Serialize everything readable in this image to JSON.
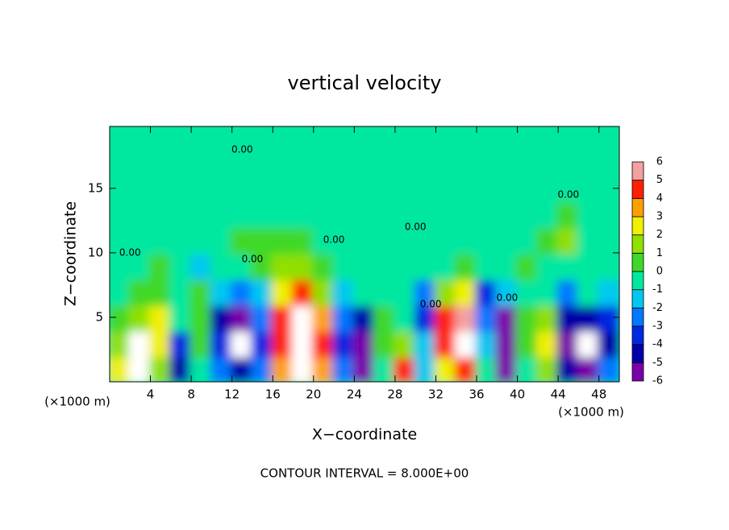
{
  "chart_data": {
    "type": "contour",
    "title": "vertical velocity",
    "xlabel": "X−coordinate",
    "ylabel": "Z−coordinate",
    "x_unit": "(×1000 m)",
    "y_unit": "(×1000 m)",
    "footer": "CONTOUR INTERVAL = 8.000E+00",
    "xlim": [
      0,
      50
    ],
    "ylim": [
      0,
      19.8
    ],
    "xticks": [
      4,
      8,
      12,
      16,
      20,
      24,
      28,
      32,
      36,
      40,
      44,
      48
    ],
    "yticks": [
      5,
      10,
      15
    ],
    "field": {
      "x": [
        1,
        3,
        5,
        7,
        9,
        11,
        13,
        15,
        17,
        19,
        21,
        23,
        25,
        27,
        29,
        31,
        33,
        35,
        37,
        39,
        41,
        43,
        45,
        47,
        49
      ],
      "z": [
        1,
        3,
        5,
        7,
        9,
        11,
        13,
        15,
        17,
        19
      ],
      "values": [
        [
          3,
          8,
          2,
          -4,
          0,
          -2,
          -4,
          -2,
          4,
          8,
          4,
          -2,
          -5,
          0,
          5,
          -1,
          3,
          5,
          0,
          -5,
          0,
          2,
          -4,
          -5,
          -2
        ],
        [
          2,
          7,
          3,
          -3,
          1,
          -3,
          -7,
          -3,
          5,
          9,
          5,
          -3,
          -6,
          1,
          2,
          -1,
          5,
          7,
          -1,
          -6,
          1,
          3,
          -5,
          -7,
          -4
        ],
        [
          1,
          2,
          3,
          0,
          1,
          -4,
          -6,
          -2,
          5,
          9,
          4,
          -2,
          -4,
          1,
          0,
          -3,
          5,
          6,
          -2,
          -5,
          1,
          2,
          -4,
          -4,
          -3
        ],
        [
          0,
          1,
          1,
          0,
          1,
          -1,
          -2,
          -1,
          3,
          5,
          2,
          -1,
          0,
          0,
          0,
          -2,
          2,
          3,
          -3,
          -1,
          0,
          0,
          -2,
          0,
          -1
        ],
        [
          0,
          0,
          1,
          0,
          -1,
          0,
          0,
          1,
          2,
          2,
          1,
          0,
          0,
          0,
          0,
          0,
          0,
          1,
          0,
          0,
          1,
          0,
          0,
          0,
          0
        ],
        [
          0,
          0,
          0,
          0,
          0,
          0,
          1,
          1,
          1,
          1,
          0,
          0,
          0,
          0,
          0,
          0,
          0,
          0,
          0,
          0,
          0,
          1,
          2,
          0,
          0
        ],
        [
          0,
          0,
          0,
          0,
          0,
          0,
          0,
          0,
          0,
          0,
          0,
          0,
          0,
          0,
          0,
          0,
          0,
          0,
          0,
          0,
          0,
          0,
          1,
          0,
          0
        ],
        [
          0,
          0,
          0,
          0,
          0,
          0,
          0,
          0,
          0,
          0,
          0,
          0,
          0,
          0,
          0,
          0,
          0,
          0,
          0,
          0,
          0,
          0,
          0,
          0,
          0
        ],
        [
          0,
          0,
          0,
          0,
          0,
          0,
          0,
          0,
          0,
          0,
          0,
          0,
          0,
          0,
          0,
          0,
          0,
          0,
          0,
          0,
          0,
          0,
          0,
          0,
          0
        ],
        [
          0,
          0,
          0,
          0,
          0,
          0,
          0,
          0,
          0,
          0,
          0,
          0,
          0,
          0,
          0,
          0,
          0,
          0,
          0,
          0,
          0,
          0,
          0,
          0,
          0
        ]
      ]
    },
    "colorbar": {
      "levels": [
        -6,
        -5,
        -4,
        -3,
        -2,
        -1,
        0,
        1,
        2,
        3,
        4,
        5,
        6
      ],
      "colors": [
        "#7a00a8",
        "#0000a8",
        "#0028e0",
        "#0078ff",
        "#00c8f0",
        "#00e8a0",
        "#40d828",
        "#90e000",
        "#f0f000",
        "#ffa000",
        "#ff2000",
        "#f4a0a0"
      ],
      "outside_color": "#ffffff"
    },
    "contour_labels": [
      {
        "text": "0.00",
        "x": 2,
        "z": 10
      },
      {
        "text": "0.00",
        "x": 14,
        "z": 9.5
      },
      {
        "text": "0.00",
        "x": 13,
        "z": 18
      },
      {
        "text": "0.00",
        "x": 22,
        "z": 11
      },
      {
        "text": "0.00",
        "x": 30,
        "z": 12
      },
      {
        "text": "0.00",
        "x": 31.5,
        "z": 6
      },
      {
        "text": "0.00",
        "x": 39,
        "z": 6.5
      },
      {
        "text": "0.00",
        "x": 45,
        "z": 14.5
      }
    ]
  }
}
